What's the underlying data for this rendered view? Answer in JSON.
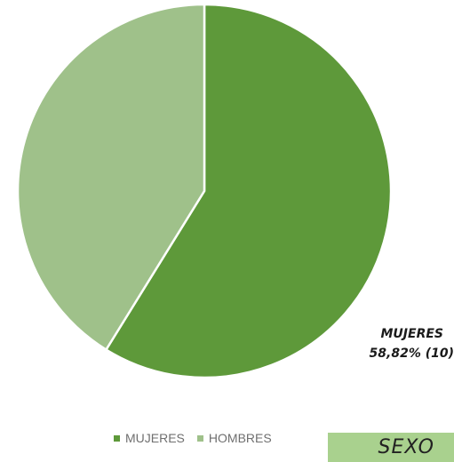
{
  "chart_data": {
    "type": "pie",
    "title": "SEXO",
    "categories": [
      "MUJERES",
      "HOMBRES"
    ],
    "values": [
      10,
      7
    ],
    "percentages": [
      58.82,
      41.18
    ],
    "colors": [
      "#5e993a",
      "#9fc18a"
    ],
    "data_labels": [
      {
        "line1": "MUJERES",
        "line2": "58,82% (10)"
      }
    ],
    "legend": {
      "position": "bottom",
      "entries": [
        "MUJERES",
        "HOMBRES"
      ]
    }
  }
}
